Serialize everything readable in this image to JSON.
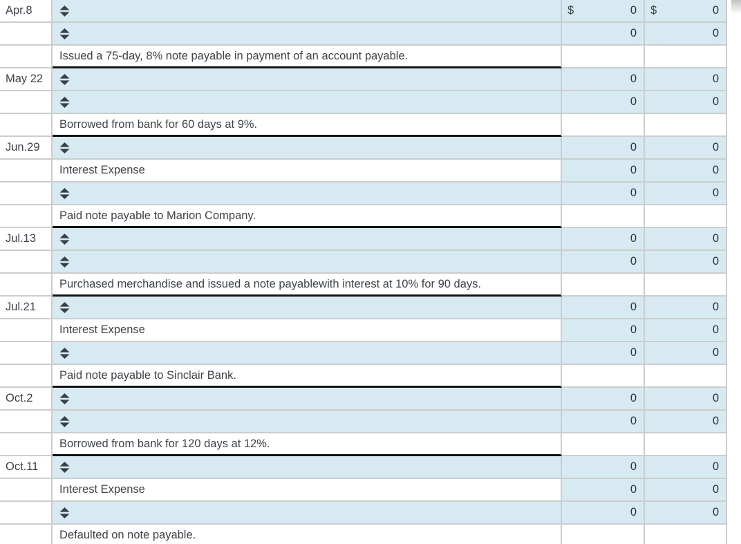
{
  "currency_symbol": "$",
  "colors": {
    "input_background": "#d7eaf2",
    "grid_line": "#cbcdce",
    "memo_underline": "#141414",
    "text": "#3d4248"
  },
  "icons": {
    "account_select": "unfold-more-icon"
  },
  "rows": [
    {
      "type": "select",
      "date": "Apr.8",
      "debit": "0",
      "credit": "0",
      "show_currency": true
    },
    {
      "type": "select",
      "date": "",
      "debit": "0",
      "credit": "0",
      "show_currency": false
    },
    {
      "type": "memo",
      "date": "",
      "text": "Issued a 75-day, 8% note payable in payment of an account payable."
    },
    {
      "type": "select",
      "date": "May 22",
      "debit": "0",
      "credit": "0",
      "show_currency": false
    },
    {
      "type": "select",
      "date": "",
      "debit": "0",
      "credit": "0",
      "show_currency": false
    },
    {
      "type": "memo",
      "date": "",
      "text": "Borrowed from bank for 60 days at 9%."
    },
    {
      "type": "select",
      "date": "Jun.29",
      "debit": "0",
      "credit": "0",
      "show_currency": false
    },
    {
      "type": "account",
      "date": "",
      "text": "Interest Expense",
      "debit": "0",
      "credit": "0",
      "show_currency": false
    },
    {
      "type": "select",
      "date": "",
      "debit": "0",
      "credit": "0",
      "show_currency": false
    },
    {
      "type": "memo",
      "date": "",
      "text": "Paid note payable to Marion Company."
    },
    {
      "type": "select",
      "date": "Jul.13",
      "debit": "0",
      "credit": "0",
      "show_currency": false
    },
    {
      "type": "select",
      "date": "",
      "debit": "0",
      "credit": "0",
      "show_currency": false
    },
    {
      "type": "memo",
      "date": "",
      "text": "Purchased merchandise and issued a note payablewith interest at 10% for 90 days."
    },
    {
      "type": "select",
      "date": "Jul.21",
      "debit": "0",
      "credit": "0",
      "show_currency": false
    },
    {
      "type": "account",
      "date": "",
      "text": "Interest Expense",
      "debit": "0",
      "credit": "0",
      "show_currency": false
    },
    {
      "type": "select",
      "date": "",
      "debit": "0",
      "credit": "0",
      "show_currency": false
    },
    {
      "type": "memo",
      "date": "",
      "text": "Paid note payable to Sinclair Bank."
    },
    {
      "type": "select",
      "date": "Oct.2",
      "debit": "0",
      "credit": "0",
      "show_currency": false
    },
    {
      "type": "select",
      "date": "",
      "debit": "0",
      "credit": "0",
      "show_currency": false
    },
    {
      "type": "memo",
      "date": "",
      "text": "Borrowed from bank for 120 days at 12%."
    },
    {
      "type": "select",
      "date": "Oct.11",
      "debit": "0",
      "credit": "0",
      "show_currency": false
    },
    {
      "type": "account",
      "date": "",
      "text": "Interest Expense",
      "debit": "0",
      "credit": "0",
      "show_currency": false
    },
    {
      "type": "select",
      "date": "",
      "debit": "0",
      "credit": "0",
      "show_currency": false
    },
    {
      "type": "memo",
      "date": "",
      "text": "Defaulted on note payable."
    }
  ]
}
